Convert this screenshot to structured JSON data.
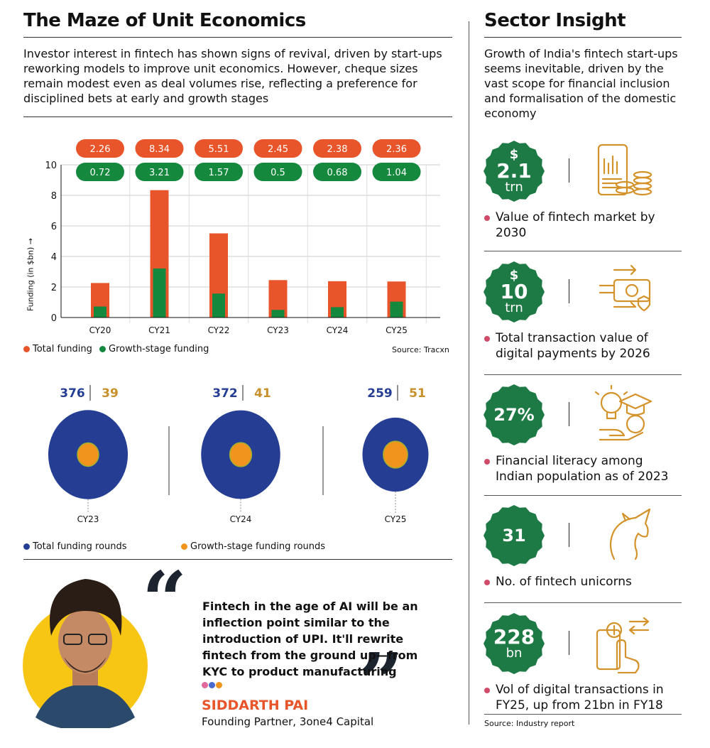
{
  "left": {
    "title": "The Maze of Unit Economics",
    "intro": "Investor interest in fintech has shown signs of revival, driven by start-ups reworking models to improve unit economics. However, cheque sizes remain modest even as deal volumes rise, reflecting a preference for disciplined bets at early and growth stages"
  },
  "chart_data": [
    {
      "type": "bar",
      "categories": [
        "CY20",
        "CY21",
        "CY22",
        "CY23",
        "CY24",
        "CY25"
      ],
      "series": [
        {
          "name": "Total funding",
          "values": [
            2.26,
            8.34,
            5.51,
            2.45,
            2.38,
            2.36
          ],
          "color": "#e8552a"
        },
        {
          "name": "Growth-stage funding",
          "values": [
            0.72,
            3.21,
            1.57,
            0.5,
            0.68,
            1.04
          ],
          "color": "#14893e"
        }
      ],
      "ylabel": "Funding (in $bn) →",
      "ylim": [
        0,
        10
      ],
      "yticks": [
        0,
        2,
        4,
        6,
        8,
        10
      ],
      "grid": true,
      "legend": "bottom-left",
      "source": "Source: Tracxn"
    },
    {
      "type": "bubble",
      "categories": [
        "CY23",
        "CY24",
        "CY25"
      ],
      "series": [
        {
          "name": "Total funding rounds",
          "values": [
            376,
            372,
            259
          ],
          "color": "#253e94"
        },
        {
          "name": "Growth-stage funding rounds",
          "values": [
            39,
            41,
            51
          ],
          "color": "#f0941e"
        }
      ],
      "legend": "bottom"
    }
  ],
  "quote": {
    "text": "Fintech in the age of AI will be an inflection point similar to the introduction of UPI. It'll rewrite fintech from the ground up—from KYC to product manufacturing",
    "name": "SIDDARTH PAI",
    "role": "Founding Partner, 3one4 Capital"
  },
  "right": {
    "title": "Sector Insight",
    "intro": "Growth of India's fintech start-ups seems inevitable, driven by the vast scope for financial inclusion and formalisation of the domestic economy",
    "items": [
      {
        "top": "$",
        "value": "2.1",
        "unit": "trn",
        "label": "Value of fintech market by 2030",
        "icon": "mobile-chart-coins-icon"
      },
      {
        "top": "$",
        "value": "10",
        "unit": "trn",
        "label": "Total transaction value of digital payments by 2026",
        "icon": "money-transfer-icon"
      },
      {
        "top": "",
        "value": "27%",
        "unit": "",
        "label": "Financial literacy among Indian population as of 2023",
        "icon": "lightbulb-graduation-icon"
      },
      {
        "top": "",
        "value": "31",
        "unit": "",
        "label": "No. of fintech unicorns",
        "icon": "unicorn-icon"
      },
      {
        "top": "",
        "value": "228",
        "unit": "bn",
        "label": "Vol of digital transactions in FY25, up from 21bn in FY18",
        "icon": "mobile-payment-icon"
      }
    ],
    "source": "Source: Industry report"
  },
  "colors": {
    "badge": "#1e7a45",
    "icon": "#d4922a",
    "accent": "#e8552a"
  }
}
